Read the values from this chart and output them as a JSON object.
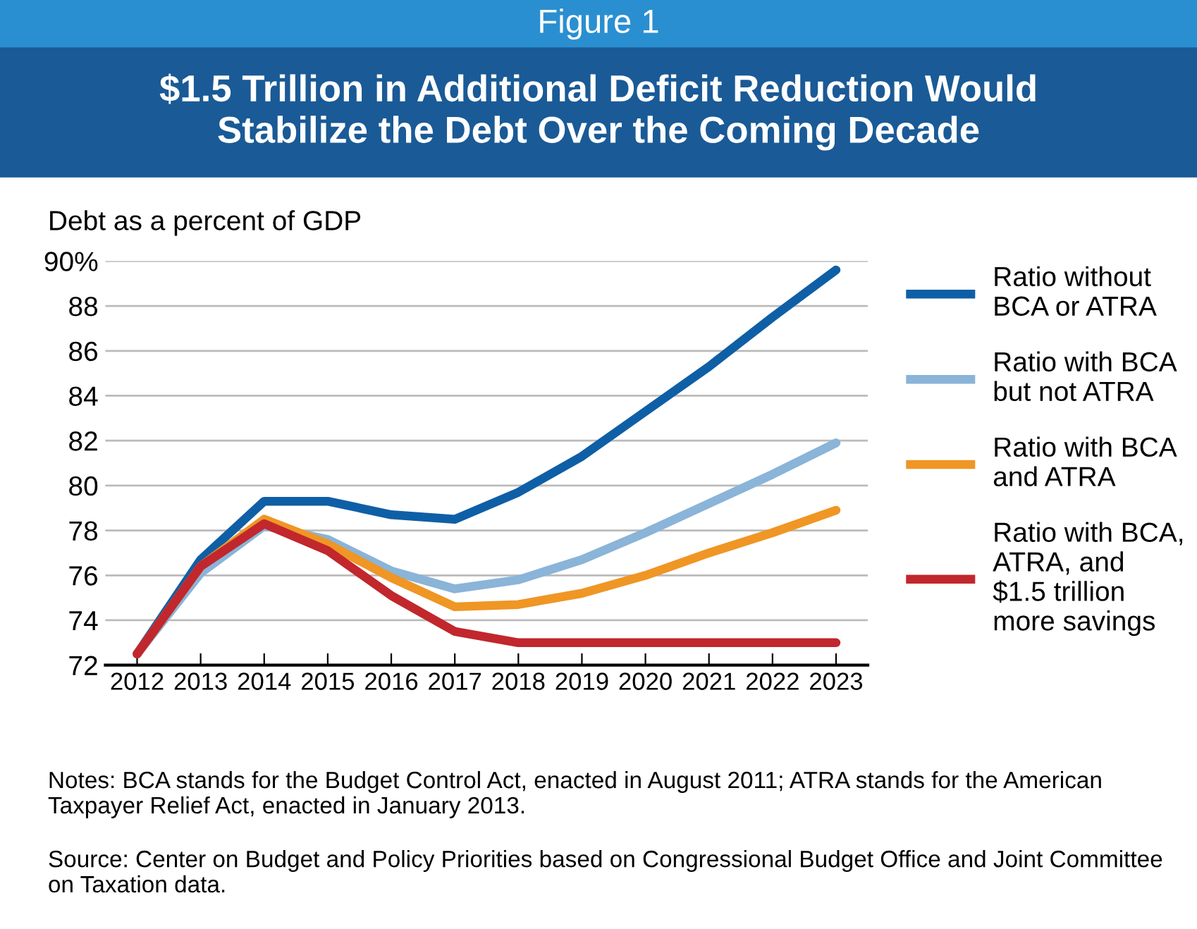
{
  "chart_data": {
    "type": "line",
    "subtitle": "Figure 1",
    "title": "$1.5 Trillion in Additional Deficit Reduction Would\nStabilize the Debt Over the Coming Decade",
    "ylabel": "Debt as a percent of GDP",
    "categories": [
      "2012",
      "2013",
      "2014",
      "2015",
      "2016",
      "2017",
      "2018",
      "2019",
      "2020",
      "2021",
      "2022",
      "2023"
    ],
    "series": [
      {
        "name": "Ratio without\nBCA or ATRA",
        "color": "#0f5fa6",
        "values": [
          72.5,
          76.7,
          79.3,
          79.3,
          78.7,
          78.5,
          79.7,
          81.3,
          83.3,
          85.3,
          87.5,
          89.6
        ]
      },
      {
        "name": "Ratio with BCA\nbut not ATRA",
        "color": "#8ab4d8",
        "values": [
          72.5,
          76.1,
          78.2,
          77.6,
          76.2,
          75.4,
          75.8,
          76.7,
          77.9,
          79.2,
          80.5,
          81.9
        ]
      },
      {
        "name": "Ratio with BCA\nand ATRA",
        "color": "#ef9625",
        "values": [
          72.5,
          76.4,
          78.5,
          77.4,
          75.9,
          74.6,
          74.7,
          75.2,
          76.0,
          77.0,
          77.9,
          78.9
        ]
      },
      {
        "name": "Ratio with BCA,\nATRA, and\n$1.5 trillion\nmore savings",
        "color": "#c1272d",
        "values": [
          72.5,
          76.4,
          78.3,
          77.1,
          75.1,
          73.5,
          73.0,
          73.0,
          73.0,
          73.0,
          73.0,
          73.0
        ]
      }
    ],
    "ylim": [
      72,
      90
    ],
    "yticks": [
      72,
      74,
      76,
      78,
      80,
      82,
      84,
      86,
      88,
      {
        "value": 90,
        "label": "90%"
      }
    ],
    "grid": "y",
    "legend": "right",
    "marker": "none",
    "line_style": "solid",
    "annotations": [
      "Notes: BCA stands for the Budget Control Act, enacted in August 2011; ATRA stands for the American Taxpayer Relief Act, enacted in January 2013.",
      "Source: Center on Budget and Policy Priorities based on Congressional Budget Office and Joint Committee on Taxation data."
    ]
  }
}
